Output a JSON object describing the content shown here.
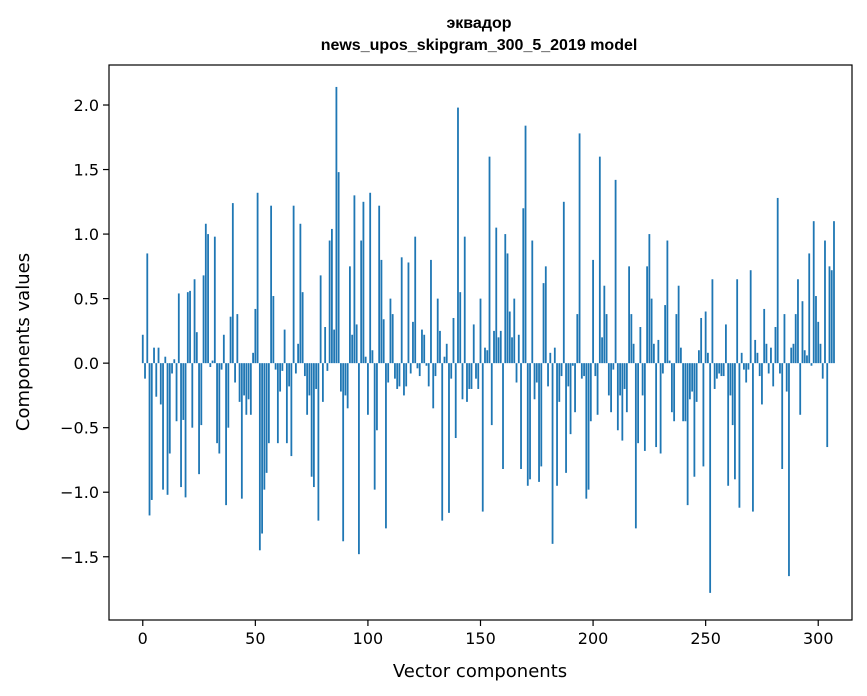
{
  "chart_data": {
    "type": "bar",
    "title": "эквадор",
    "subtitle": "news_upos_skipgram_300_5_2019 model",
    "xlabel": "Vector components",
    "ylabel": "Components values",
    "xlim": [
      -15,
      315
    ],
    "ylim": [
      -1.99,
      2.31
    ],
    "xticks": [
      0,
      50,
      100,
      150,
      200,
      250,
      300
    ],
    "yticks": [
      -1.5,
      -1.0,
      -0.5,
      0.0,
      0.5,
      1.0,
      1.5,
      2.0
    ],
    "ytick_labels": [
      "−1.5",
      "−1.0",
      "−0.5",
      "0.0",
      "0.5",
      "1.0",
      "1.5",
      "2.0"
    ],
    "bar_color": "#1f77b4",
    "values": [
      0.22,
      -0.12,
      0.85,
      -1.18,
      -1.06,
      0.12,
      -0.26,
      0.12,
      -0.32,
      -0.98,
      0.05,
      -1.02,
      -0.7,
      -0.08,
      0.03,
      -0.45,
      0.54,
      -0.96,
      -0.44,
      -1.04,
      0.55,
      0.56,
      -0.5,
      0.65,
      0.24,
      -0.86,
      -0.48,
      0.68,
      1.08,
      1.0,
      -0.03,
      0.02,
      0.98,
      -0.62,
      -0.7,
      -0.05,
      0.22,
      -1.1,
      -0.5,
      0.36,
      1.24,
      -0.15,
      0.38,
      -0.3,
      -1.05,
      -0.25,
      -0.4,
      -0.28,
      -0.4,
      0.08,
      0.42,
      1.32,
      -1.45,
      -1.32,
      -0.98,
      -0.85,
      -0.62,
      1.22,
      0.52,
      -0.05,
      -0.62,
      -0.22,
      -0.06,
      0.26,
      -0.62,
      -0.18,
      -0.72,
      1.22,
      -0.08,
      0.15,
      1.08,
      0.55,
      -0.1,
      -0.4,
      -0.25,
      -0.88,
      -0.96,
      -0.2,
      -1.22,
      0.68,
      -0.3,
      0.28,
      -0.06,
      0.95,
      1.04,
      0.26,
      2.14,
      1.48,
      -0.22,
      -1.38,
      -0.25,
      -0.35,
      0.75,
      0.22,
      1.3,
      0.3,
      -1.48,
      0.95,
      1.25,
      0.05,
      -0.4,
      1.32,
      0.1,
      -0.98,
      -0.52,
      1.22,
      0.8,
      0.34,
      -1.28,
      -0.15,
      0.5,
      0.38,
      -0.12,
      -0.2,
      -0.18,
      0.82,
      -0.25,
      -0.18,
      0.78,
      -0.08,
      0.32,
      0.98,
      -0.04,
      -0.1,
      0.26,
      0.22,
      -0.02,
      -0.18,
      0.8,
      -0.35,
      -0.1,
      0.5,
      0.25,
      -1.22,
      0.05,
      0.15,
      -1.16,
      -0.12,
      0.35,
      -0.58,
      1.98,
      0.55,
      -0.28,
      0.98,
      -0.3,
      -0.2,
      -0.2,
      0.3,
      -0.12,
      -0.2,
      0.5,
      -1.15,
      0.12,
      0.1,
      1.6,
      -0.48,
      0.25,
      1.05,
      0.2,
      0.25,
      -0.82,
      1.0,
      0.85,
      0.4,
      0.2,
      0.5,
      -0.15,
      0.22,
      -0.82,
      1.2,
      1.84,
      -0.95,
      -0.9,
      0.95,
      -0.28,
      -0.15,
      -0.92,
      -0.8,
      0.62,
      0.75,
      -0.18,
      0.08,
      -1.4,
      0.12,
      -0.95,
      -0.3,
      -0.1,
      1.25,
      -0.85,
      -0.18,
      -0.55,
      -0.02,
      -0.38,
      0.38,
      1.78,
      -0.12,
      -0.1,
      -1.05,
      -0.98,
      -0.45,
      0.8,
      -0.1,
      -0.4,
      1.6,
      0.2,
      0.6,
      0.38,
      -0.25,
      -0.38,
      -0.05,
      1.42,
      -0.52,
      -0.25,
      -0.6,
      -0.2,
      -0.38,
      0.75,
      0.38,
      0.15,
      -1.28,
      -0.62,
      0.28,
      -0.25,
      -0.68,
      0.75,
      1.0,
      0.5,
      0.15,
      -0.65,
      0.18,
      -0.7,
      -0.08,
      0.45,
      0.95,
      0.02,
      -0.38,
      -0.45,
      0.38,
      0.6,
      0.12,
      -0.45,
      -0.45,
      -1.1,
      -0.28,
      -0.22,
      -0.88,
      -0.3,
      0.1,
      0.35,
      -0.8,
      0.4,
      0.08,
      -1.78,
      0.65,
      -0.2,
      -0.12,
      -0.08,
      -0.1,
      -0.1,
      0.3,
      -0.95,
      -0.25,
      -0.48,
      -0.9,
      0.65,
      -1.12,
      0.08,
      -0.05,
      -0.15,
      -0.05,
      0.72,
      -1.15,
      0.18,
      0.08,
      -0.1,
      -0.32,
      0.42,
      0.15,
      -0.08,
      0.12,
      -0.18,
      0.28,
      1.28,
      -0.08,
      -0.82,
      0.38,
      -0.22,
      -1.65,
      0.12,
      0.15,
      0.38,
      0.65,
      -0.4,
      0.48,
      0.1,
      0.06,
      0.85,
      -0.02,
      1.1,
      0.52,
      0.32,
      0.15,
      -0.12,
      0.95,
      -0.65,
      0.75,
      0.72,
      1.1
    ]
  }
}
